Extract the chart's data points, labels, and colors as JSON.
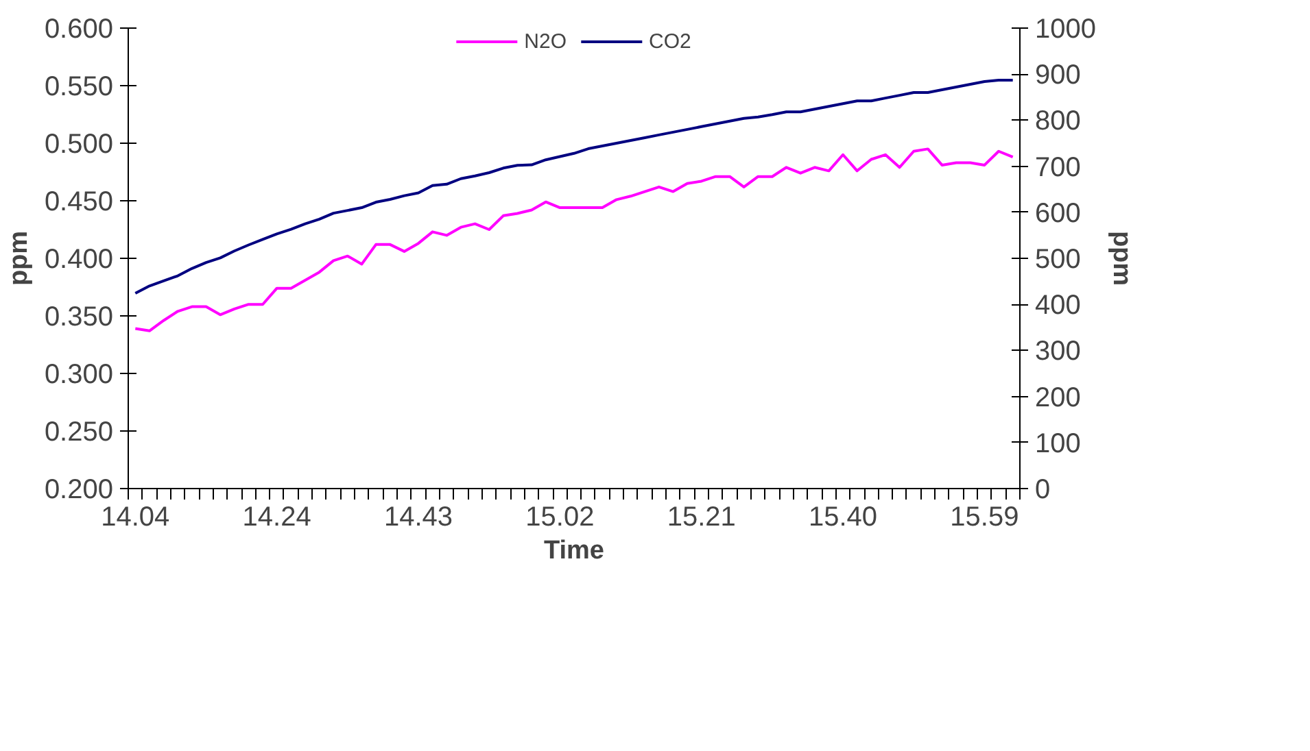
{
  "chart_data": {
    "type": "line",
    "xlabel": "Time",
    "ylabel": "ppm",
    "y2label": "ppm",
    "categories": [
      "14.04",
      null,
      null,
      null,
      null,
      null,
      null,
      null,
      null,
      null,
      "14.24",
      null,
      null,
      null,
      null,
      null,
      null,
      null,
      null,
      null,
      "14.43",
      null,
      null,
      null,
      null,
      null,
      null,
      null,
      null,
      null,
      "15.02",
      null,
      null,
      null,
      null,
      null,
      null,
      null,
      null,
      null,
      "15.21",
      null,
      null,
      null,
      null,
      null,
      null,
      null,
      null,
      null,
      "15.40",
      null,
      null,
      null,
      null,
      null,
      null,
      null,
      null,
      null,
      "15.59",
      null,
      null
    ],
    "series": [
      {
        "name": "N2O",
        "color": "#ff00ff",
        "values": [
          0.339,
          0.337,
          0.346,
          0.354,
          0.358,
          0.358,
          0.351,
          0.356,
          0.36,
          0.36,
          0.374,
          0.374,
          0.381,
          0.388,
          0.398,
          0.402,
          0.395,
          0.412,
          0.412,
          0.406,
          0.413,
          0.423,
          0.42,
          0.427,
          0.43,
          0.425,
          0.437,
          0.439,
          0.442,
          0.449,
          0.444,
          0.444,
          0.444,
          0.444,
          0.451,
          0.454,
          0.458,
          0.462,
          0.458,
          0.465,
          0.467,
          0.471,
          0.471,
          0.462,
          0.471,
          0.471,
          0.479,
          0.474,
          0.479,
          0.476,
          0.49,
          0.476,
          0.486,
          0.49,
          0.479,
          0.493,
          0.495,
          0.481,
          0.483,
          0.483,
          0.481,
          0.493,
          0.488
        ]
      },
      {
        "name": "CO2",
        "color": "#000080",
        "axis": "y2",
        "values": [
          424,
          440,
          451,
          462,
          478,
          491,
          501,
          516,
          529,
          541,
          553,
          563,
          575,
          585,
          598,
          604,
          610,
          622,
          628,
          636,
          642,
          658,
          661,
          673,
          679,
          686,
          696,
          702,
          703,
          714,
          721,
          728,
          738,
          744,
          750,
          756,
          762,
          768,
          774,
          780,
          786,
          792,
          798,
          804,
          807,
          812,
          818,
          818,
          824,
          830,
          836,
          842,
          842,
          848,
          854,
          860,
          860,
          866,
          872,
          878,
          884,
          887,
          887
        ]
      }
    ],
    "ylim": [
      0.2,
      0.6
    ],
    "yticks": [
      {
        "value": 0.2,
        "label": "0.200"
      },
      {
        "value": 0.25,
        "label": "0.250"
      },
      {
        "value": 0.3,
        "label": "0.300"
      },
      {
        "value": 0.35,
        "label": "0.350"
      },
      {
        "value": 0.4,
        "label": "0.400"
      },
      {
        "value": 0.45,
        "label": "0.450"
      },
      {
        "value": 0.5,
        "label": "0.500"
      },
      {
        "value": 0.55,
        "label": "0.550"
      },
      {
        "value": 0.6,
        "label": "0.600"
      }
    ],
    "y2lim": [
      0,
      1000
    ],
    "y2ticks": [
      0,
      100,
      200,
      300,
      400,
      500,
      600,
      700,
      800,
      900,
      1000
    ],
    "grid": false,
    "legend": "top",
    "marker": "none",
    "line_style": "solid"
  }
}
